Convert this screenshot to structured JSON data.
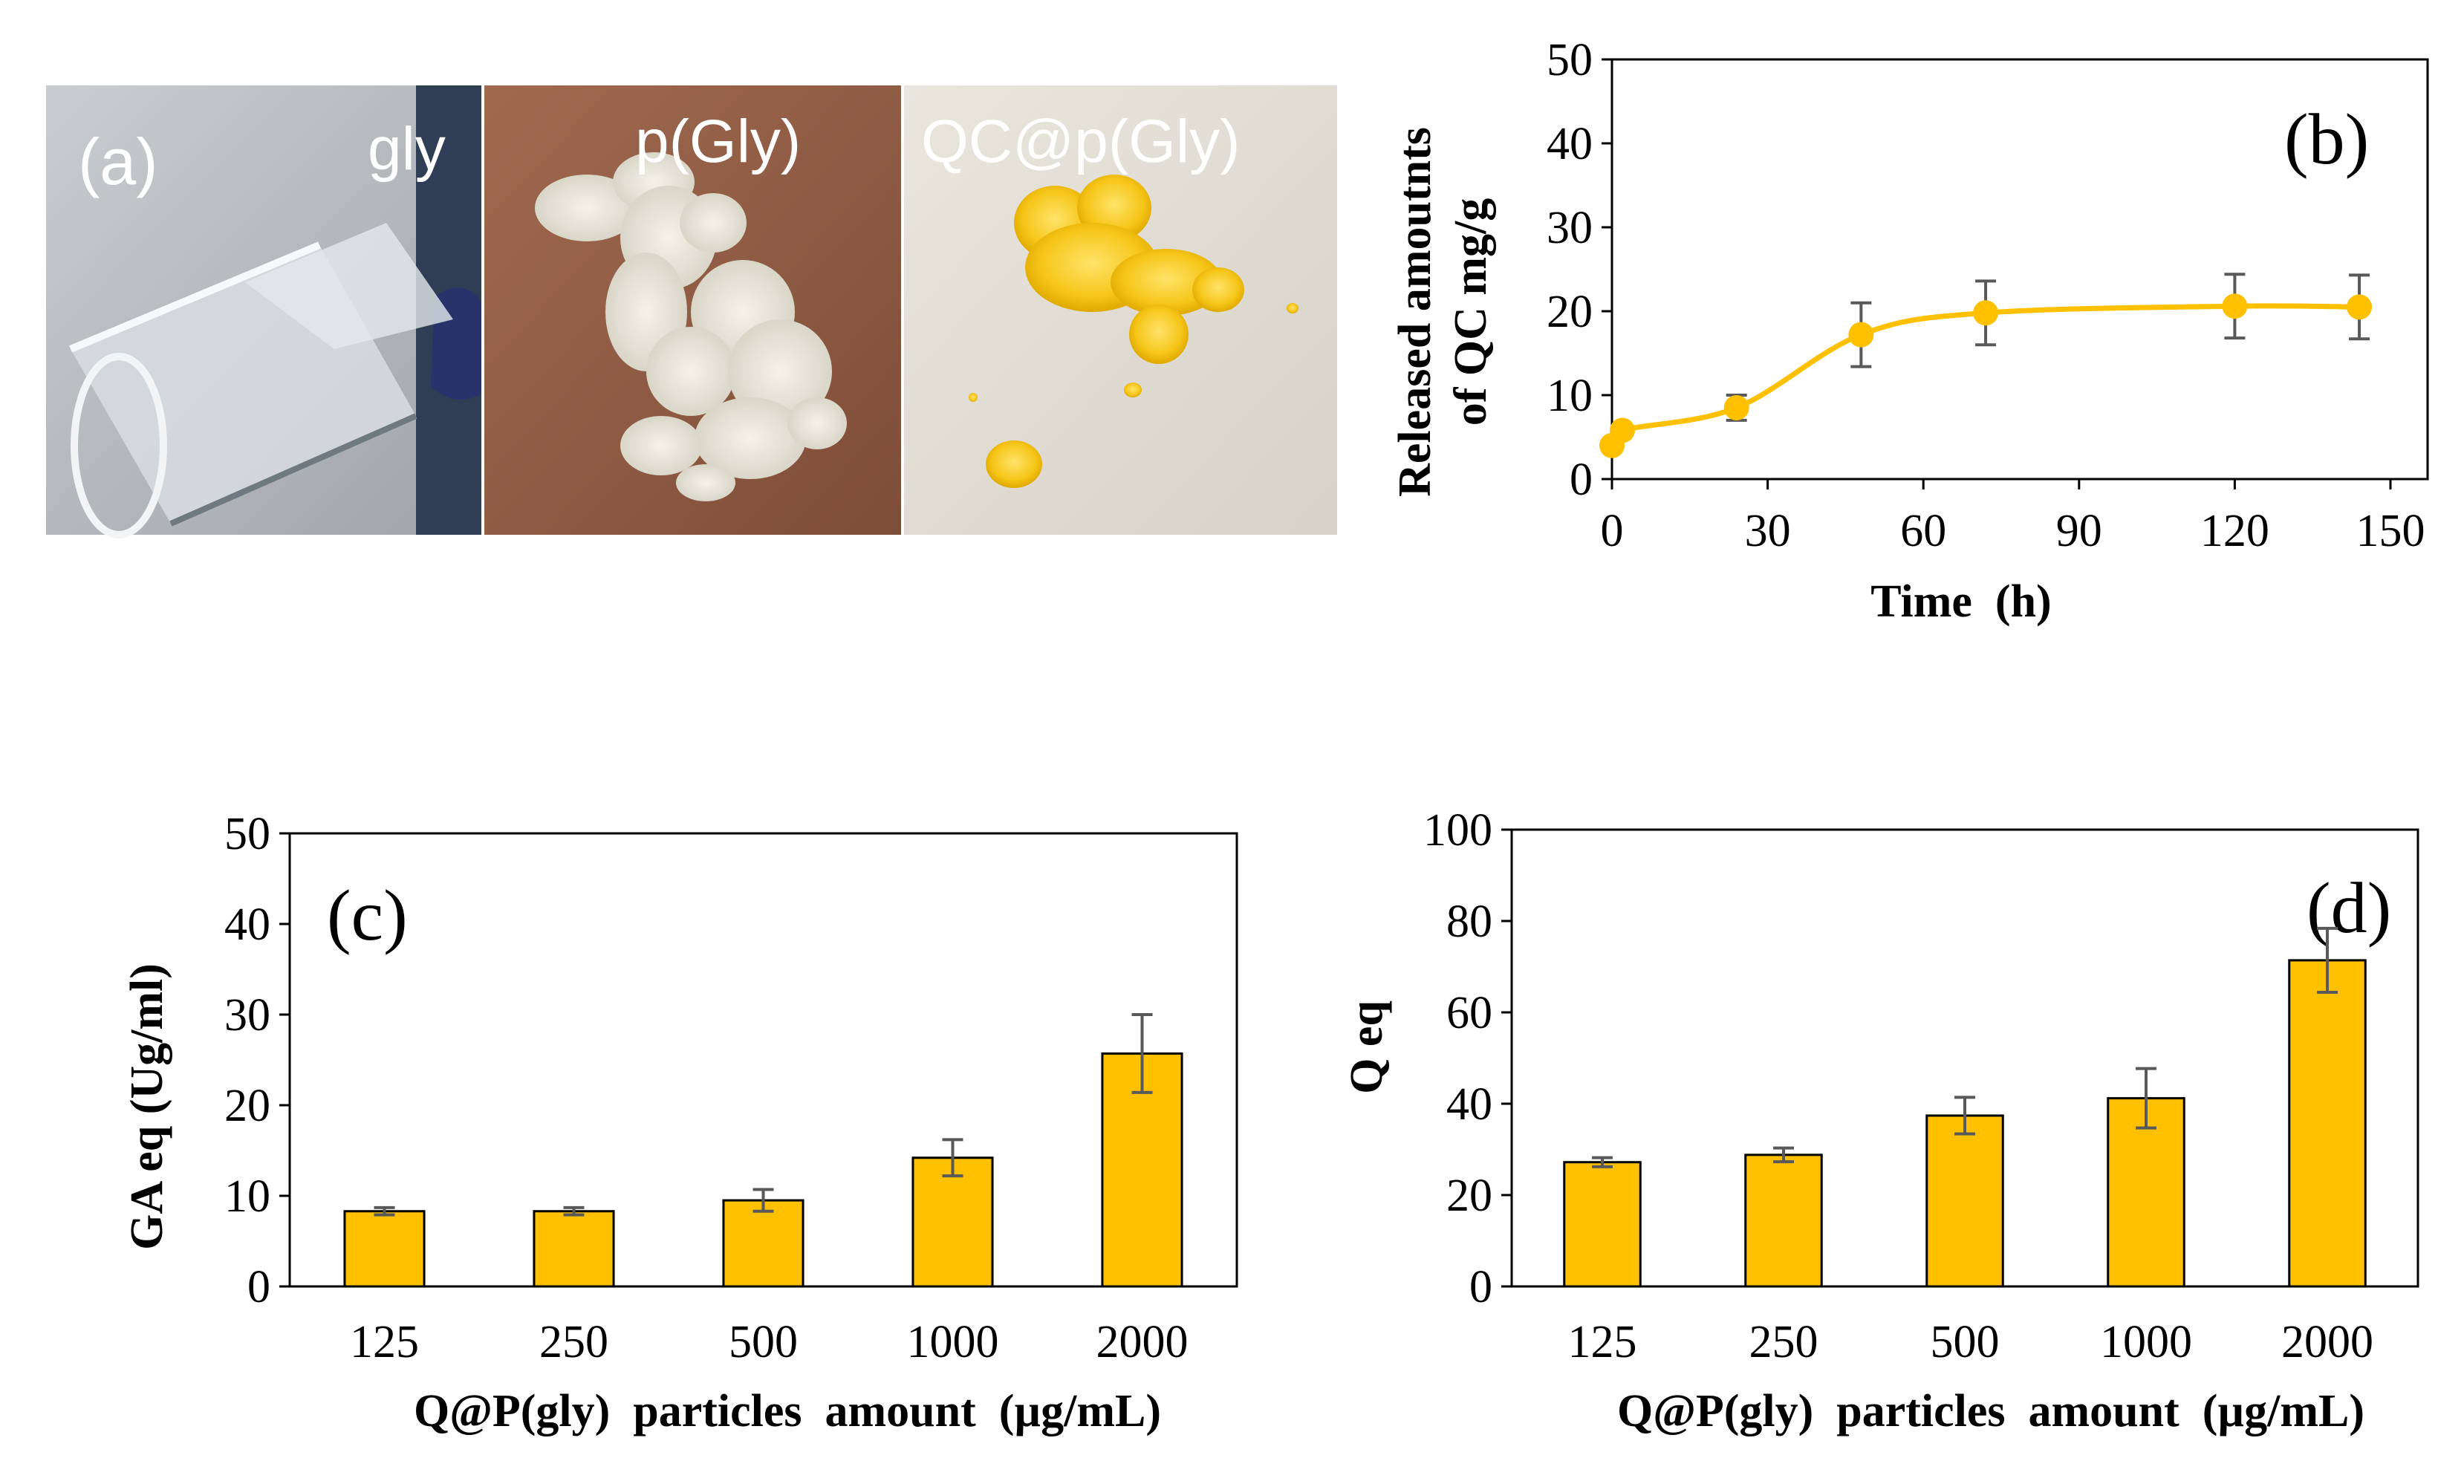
{
  "colors": {
    "accent": "#FFC000",
    "bar_fill": "#FFC000",
    "line": "#FFC000",
    "errorbar": "#595959",
    "axis": "#000000"
  },
  "photos": {
    "panel_label": "(a)",
    "items": [
      {
        "label": "gly",
        "description": "clear liquid glycerol in glass vial"
      },
      {
        "label": "p(Gly)",
        "description": "white porous polymer particles on brown paper"
      },
      {
        "label": "QC@p(Gly)",
        "description": "yellow quercetin-loaded particles on white paper"
      }
    ]
  },
  "chart_data": [
    {
      "id": "b",
      "panel_label": "(b)",
      "type": "line",
      "xlabel": "Time  (h)",
      "ylabel": [
        "Released amoutnts",
        "of QC mg/g"
      ],
      "x": [
        0,
        2,
        24,
        48,
        72,
        120,
        144
      ],
      "y": [
        4,
        5.8,
        8.5,
        17.2,
        19.8,
        20.6,
        20.5
      ],
      "err": [
        0,
        0,
        1.5,
        3.8,
        3.8,
        3.8,
        3.8
      ],
      "xlim": [
        0,
        150
      ],
      "ylim": [
        0,
        50
      ],
      "xticks": [
        0,
        30,
        60,
        90,
        120,
        150
      ],
      "yticks": [
        0,
        10,
        20,
        30,
        40,
        50
      ],
      "smooth": true
    },
    {
      "id": "c",
      "panel_label": "(c)",
      "type": "bar",
      "xlabel": "Q@P(gly)  particles  amount  (µg/mL)",
      "ylabel": "GA eq (Ug/ml)",
      "categories": [
        "125",
        "250",
        "500",
        "1000",
        "2000"
      ],
      "values": [
        8.3,
        8.3,
        9.5,
        14.2,
        25.7
      ],
      "err": [
        0.4,
        0.4,
        1.2,
        2.0,
        4.3
      ],
      "ylim": [
        0,
        50
      ],
      "yticks": [
        0,
        10,
        20,
        30,
        40,
        50
      ]
    },
    {
      "id": "d",
      "panel_label": "(d)",
      "type": "bar",
      "xlabel": "Q@P(gly)  particles  amount  (µg/mL)",
      "ylabel": "Q eq",
      "categories": [
        "125",
        "250",
        "500",
        "1000",
        "2000"
      ],
      "values": [
        27.2,
        28.8,
        37.4,
        41.2,
        71.4
      ],
      "err": [
        1.0,
        1.5,
        4.0,
        6.5,
        7.0
      ],
      "ylim": [
        0,
        100
      ],
      "yticks": [
        0,
        20,
        40,
        60,
        80,
        100
      ]
    }
  ]
}
